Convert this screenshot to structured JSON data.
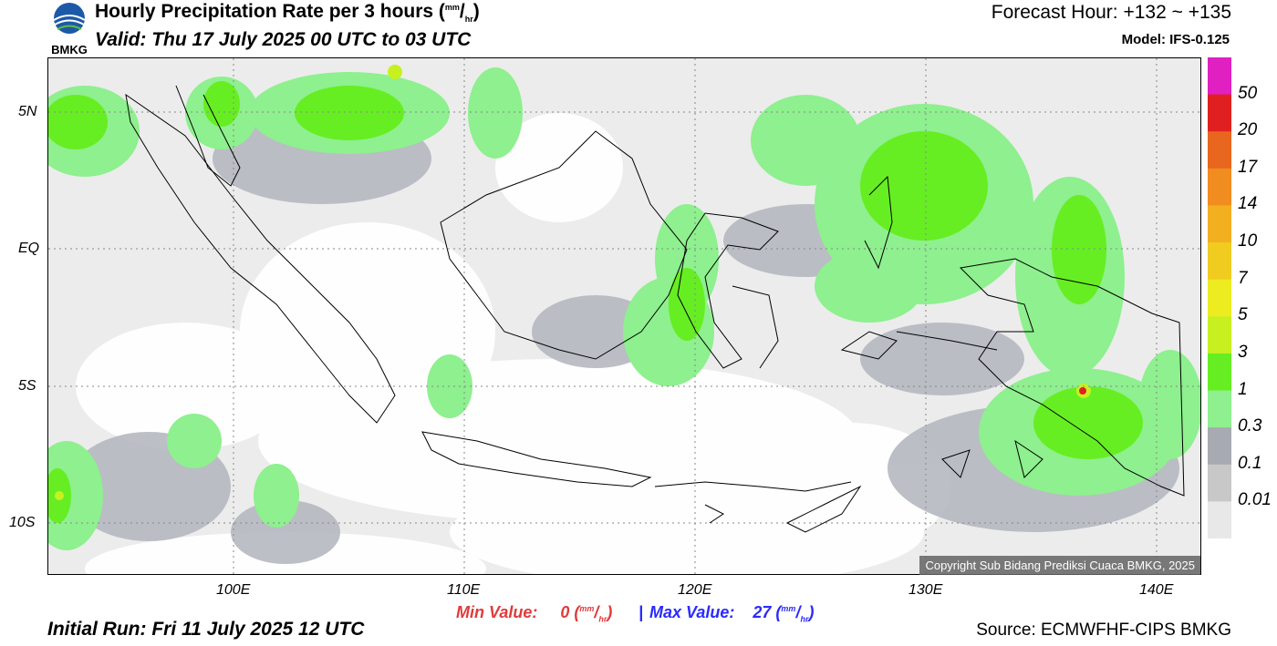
{
  "header": {
    "logo_text": "BMKG",
    "title_main": "Hourly Precipitation Rate per 3 hours (",
    "title_unit_num": "mm",
    "title_unit_den": "hr",
    "title_close": ")",
    "valid": "Valid: Thu 17 July 2025 00 UTC to 03 UTC",
    "forecast_hour": "Forecast Hour: +132 ~ +135",
    "model": "Model: IFS-0.125"
  },
  "axes": {
    "lat_labels": [
      "5N",
      "EQ",
      "5S",
      "10S"
    ],
    "lon_labels": [
      "100E",
      "110E",
      "120E",
      "130E",
      "140E"
    ]
  },
  "colorbar": {
    "labels": [
      "50",
      "20",
      "17",
      "14",
      "10",
      "7",
      "5",
      "3",
      "1",
      "0.3",
      "0.1",
      "0.01"
    ],
    "colors": [
      "#e020c0",
      "#e02020",
      "#e8661e",
      "#f08c20",
      "#f2b020",
      "#f0cc20",
      "#ecec20",
      "#c8f020",
      "#66ee22",
      "#8ef08e",
      "#a8aab2",
      "#c8c8c8",
      "#e8e8e8"
    ]
  },
  "footer": {
    "min_label": "Min Value:",
    "min_value": "0",
    "max_label": "Max Value:",
    "max_value": "27",
    "unit_num": "mm",
    "unit_den": "hr",
    "separator": "|",
    "initial_run": "Initial Run: Fri 11 July 2025 12 UTC",
    "source": "Source: ECMWFHF-CIPS BMKG",
    "copyright": "Copyright Sub Bidang Prediksi Cuaca BMKG, 2025"
  }
}
